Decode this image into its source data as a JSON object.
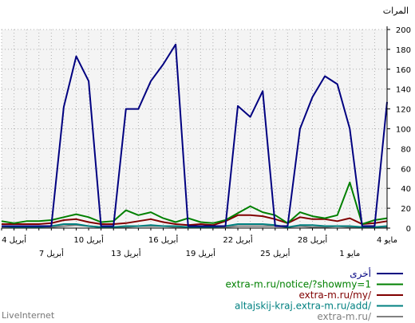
{
  "chart_data": {
    "type": "line",
    "ylabel": "المرات",
    "ylim": [
      0,
      200
    ],
    "y_ticks": [
      0,
      20,
      40,
      60,
      80,
      100,
      120,
      140,
      160,
      180,
      200
    ],
    "x_ticks_top": [
      "4 مايو",
      "28 أبريل",
      "22 أبريل",
      "16 أبريل",
      "10 أبريل",
      "4 أبريل"
    ],
    "x_ticks_bottom": [
      "1 مايو",
      "25 أبريل",
      "19 أبريل",
      "13 أبريل",
      "7 أبريل"
    ],
    "grid": true,
    "legend_position": "bottom-right",
    "x_direction": "right-to-left",
    "x_count": 32,
    "series": [
      {
        "name": "أخرى",
        "color": "#000080",
        "values": [
          127,
          2,
          2,
          100,
          145,
          153,
          132,
          100,
          2,
          2,
          138,
          112,
          123,
          2,
          2,
          2,
          2,
          185,
          165,
          148,
          120,
          120,
          2,
          2,
          148,
          173,
          122,
          2,
          2,
          2,
          2,
          2
        ]
      },
      {
        "name": "extra-m.ru/notice/?showmy=1",
        "color": "#008000",
        "values": [
          10,
          8,
          4,
          46,
          13,
          10,
          12,
          16,
          5,
          13,
          16,
          22,
          15,
          8,
          5,
          6,
          10,
          6,
          10,
          16,
          13,
          18,
          7,
          6,
          11,
          14,
          11,
          8,
          7,
          7,
          5,
          7
        ]
      },
      {
        "name": "extra-m.ru/my/",
        "color": "#800000",
        "values": [
          7,
          5,
          4,
          10,
          7,
          9,
          9,
          11,
          5,
          9,
          12,
          13,
          13,
          7,
          3,
          4,
          3,
          4,
          6,
          9,
          7,
          5,
          4,
          4,
          6,
          9,
          8,
          5,
          4,
          4,
          4,
          4
        ]
      },
      {
        "name": "altajskij-kraj.extra-m.ru/add/",
        "color": "#008080",
        "values": [
          2,
          1,
          1,
          2,
          2,
          2,
          3,
          3,
          1,
          3,
          4,
          4,
          4,
          2,
          1,
          1,
          1,
          2,
          2,
          3,
          2,
          2,
          1,
          1,
          2,
          4,
          4,
          2,
          1,
          1,
          1,
          2
        ]
      },
      {
        "name": "extra-m.ru/",
        "color": "#808080",
        "values": [
          1,
          1,
          1,
          1,
          2,
          1,
          1,
          2,
          1,
          2,
          2,
          2,
          2,
          1,
          1,
          1,
          1,
          1,
          2,
          2,
          2,
          1,
          1,
          1,
          2,
          3,
          2,
          1,
          1,
          1,
          1,
          1
        ]
      }
    ]
  },
  "brand": "LiveInternet"
}
